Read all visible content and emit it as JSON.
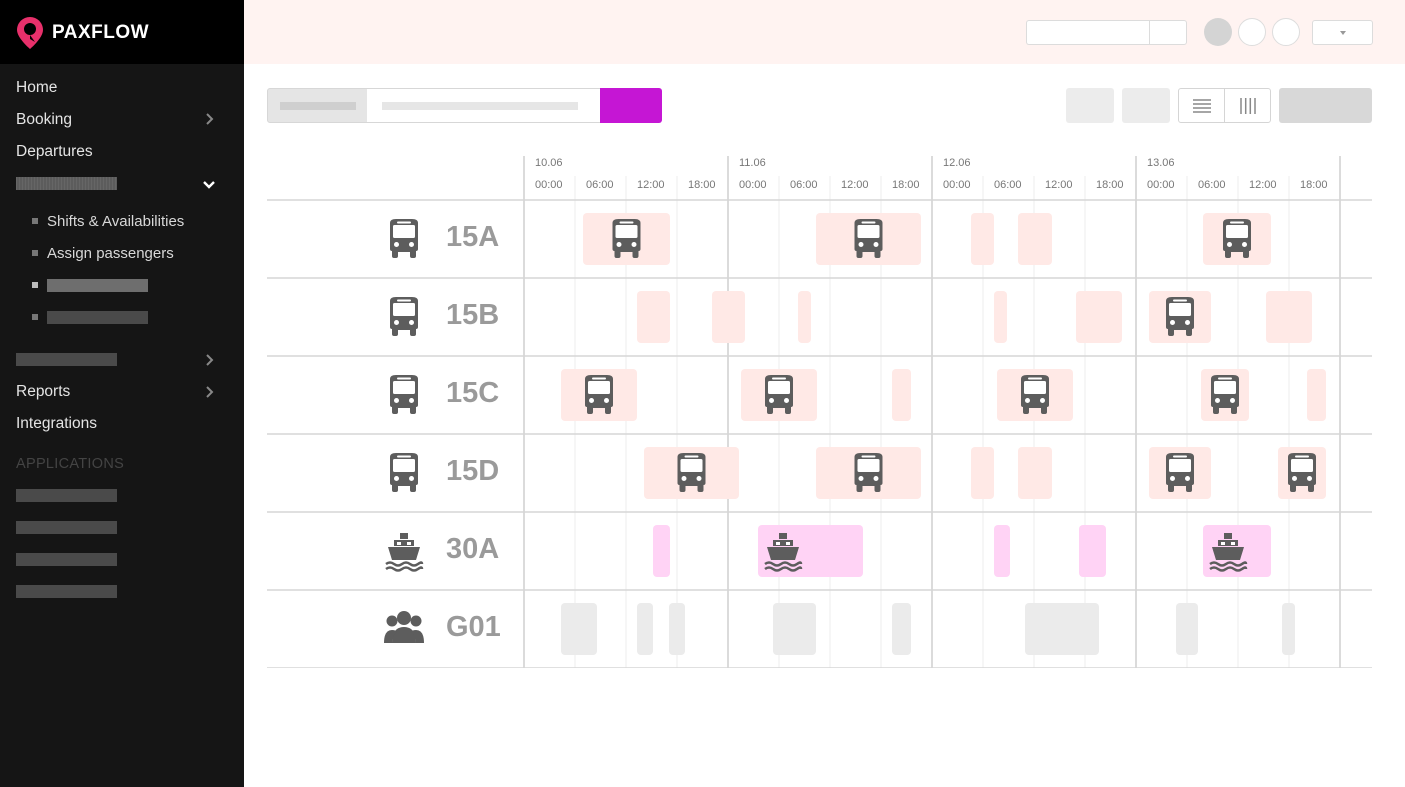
{
  "app": {
    "name": "PAXFLOW"
  },
  "sidebar": {
    "items": [
      {
        "label": "Home",
        "has_chevron": false
      },
      {
        "label": "Booking",
        "has_chevron": true
      },
      {
        "label": "Departures",
        "has_chevron": false
      }
    ],
    "sub_items": [
      {
        "label": "Shifts & Availabilities"
      },
      {
        "label": "Assign passengers"
      }
    ],
    "items_lower": [
      {
        "label": "Reports",
        "has_chevron": true
      },
      {
        "label": "Integrations",
        "has_chevron": false
      }
    ],
    "section_label": "APPLICATIONS"
  },
  "gantt": {
    "dates": [
      "10.06",
      "11.06",
      "12.06",
      "13.06"
    ],
    "times": [
      "00:00",
      "06:00",
      "12:00",
      "18:00"
    ],
    "resources": [
      {
        "label": "15A",
        "icon": "bus-icon"
      },
      {
        "label": "15B",
        "icon": "bus-icon"
      },
      {
        "label": "15C",
        "icon": "bus-icon"
      },
      {
        "label": "15D",
        "icon": "bus-icon"
      },
      {
        "label": "30A",
        "icon": "ship-icon"
      },
      {
        "label": "G01",
        "icon": "group-icon"
      }
    ]
  },
  "colors": {
    "accent": "#c516d4",
    "brand_pink": "#e8306b",
    "bus_slot": "#ffe9e6",
    "ship_slot": "#ffd3f5",
    "group_slot": "#ebebeb",
    "icon_gray": "#5d5d5d"
  }
}
